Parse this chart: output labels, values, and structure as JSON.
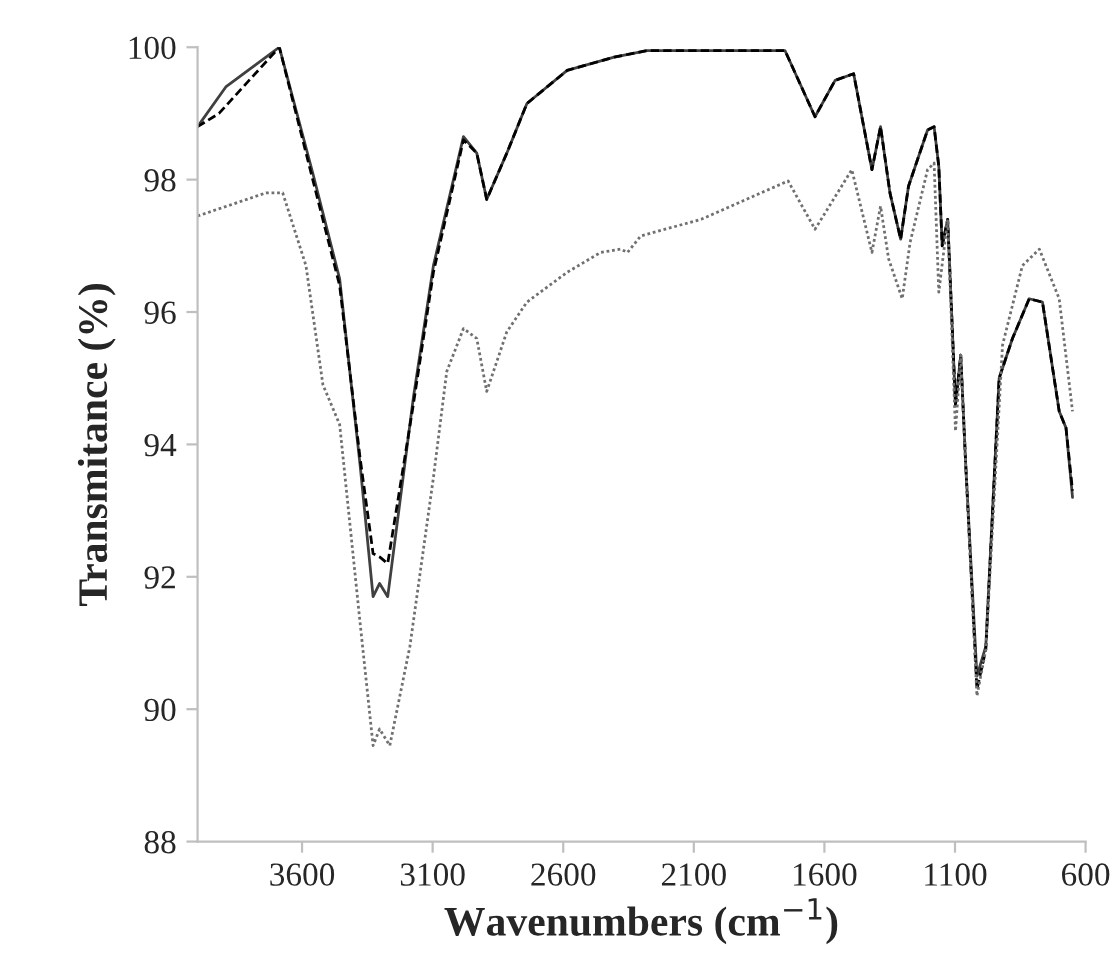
{
  "chart_data": {
    "type": "line",
    "xlabel": "Wavenumbers (cm$^{−1}$)",
    "ylabel": "Transmitance (%)",
    "xlim": [
      4000,
      600
    ],
    "xticks": [
      3600,
      3100,
      2600,
      2100,
      1600,
      1100,
      600
    ],
    "ylim": [
      88,
      100
    ],
    "yticks": [
      88,
      90,
      92,
      94,
      96,
      98,
      100
    ],
    "grid": false,
    "legend": false,
    "marker": "none",
    "series": [
      {
        "color": "#404040",
        "line_style": "solid",
        "x": [
          4000,
          3892,
          3687,
          3559,
          3456,
          3378,
          3328,
          3303,
          3272,
          3174,
          3097,
          2982,
          2931,
          2893,
          2816,
          2739,
          2585,
          2405,
          2279,
          1751,
          1636,
          1559,
          1488,
          1418,
          1385,
          1349,
          1308,
          1278,
          1205,
          1180,
          1162,
          1149,
          1128,
          1098,
          1078,
          1059,
          1016,
          982,
          931,
          880,
          816,
          765,
          701,
          675,
          650
        ],
        "values": [
          98.8,
          99.4,
          100,
          98.1,
          96.5,
          93.7,
          91.7,
          91.9,
          91.7,
          94.7,
          96.7,
          98.65,
          98.4,
          97.7,
          98.4,
          99.15,
          99.65,
          99.85,
          99.95,
          99.95,
          98.95,
          99.5,
          99.6,
          98.15,
          98.8,
          97.8,
          97.1,
          97.9,
          98.75,
          98.8,
          98.2,
          97.0,
          97.4,
          94.6,
          95.35,
          93.7,
          90.5,
          90.95,
          95.0,
          95.6,
          96.2,
          96.15,
          94.5,
          94.25,
          93.2
        ]
      },
      {
        "color": "#000000",
        "line_style": "dashed",
        "x": [
          4000,
          3918,
          3687,
          3559,
          3456,
          3378,
          3328,
          3303,
          3272,
          3174,
          3097,
          2982,
          2931,
          2893,
          2816,
          2739,
          2585,
          2405,
          2279,
          1751,
          1636,
          1559,
          1488,
          1418,
          1385,
          1349,
          1308,
          1278,
          1205,
          1180,
          1162,
          1149,
          1128,
          1098,
          1078,
          1059,
          1016,
          982,
          931,
          880,
          816,
          765,
          701,
          675,
          650
        ],
        "values": [
          98.8,
          99.0,
          100,
          98.0,
          96.4,
          93.8,
          92.35,
          92.3,
          92.2,
          94.6,
          96.6,
          98.6,
          98.4,
          97.7,
          98.4,
          99.15,
          99.65,
          99.85,
          99.95,
          99.95,
          98.95,
          99.5,
          99.6,
          98.15,
          98.8,
          97.8,
          97.1,
          97.9,
          98.75,
          98.8,
          98.2,
          97.0,
          97.4,
          94.6,
          95.35,
          93.7,
          90.3,
          90.9,
          95.0,
          95.6,
          96.2,
          96.15,
          94.5,
          94.25,
          93.3
        ]
      },
      {
        "color": "#707070",
        "line_style": "dotted",
        "x": [
          4000,
          3738,
          3674,
          3585,
          3520,
          3456,
          3379,
          3328,
          3303,
          3264,
          3187,
          3097,
          3046,
          2982,
          2931,
          2893,
          2816,
          2739,
          2585,
          2457,
          2380,
          2354,
          2303,
          2072,
          1739,
          1636,
          1495,
          1418,
          1385,
          1354,
          1302,
          1272,
          1205,
          1180,
          1162,
          1128,
          1098,
          1078,
          1059,
          1016,
          982,
          918,
          842,
          777,
          701,
          650
        ],
        "values": [
          97.45,
          97.8,
          97.8,
          96.7,
          94.9,
          94.3,
          91.35,
          89.45,
          89.7,
          89.45,
          90.95,
          93.5,
          95.1,
          95.75,
          95.6,
          94.8,
          95.7,
          96.15,
          96.6,
          96.9,
          96.95,
          96.9,
          97.15,
          97.4,
          97.98,
          97.25,
          98.15,
          96.9,
          97.6,
          96.8,
          96.2,
          97.05,
          98.15,
          98.25,
          96.3,
          97.4,
          94.2,
          95.35,
          93.7,
          90.2,
          90.9,
          95.5,
          96.7,
          96.95,
          96.2,
          94.5
        ]
      }
    ]
  }
}
